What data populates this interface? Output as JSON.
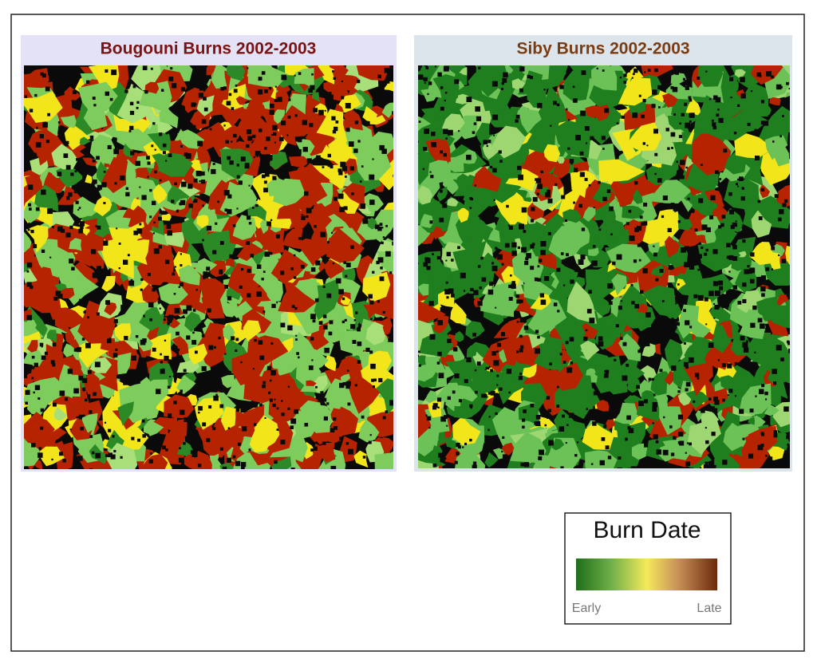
{
  "maps": [
    {
      "title": "Bougouni Burns 2002-2003"
    },
    {
      "title": "Siby Burns 2002-2003"
    }
  ],
  "legend": {
    "title": "Burn Date",
    "start_label": "Early",
    "end_label": "Late"
  }
}
